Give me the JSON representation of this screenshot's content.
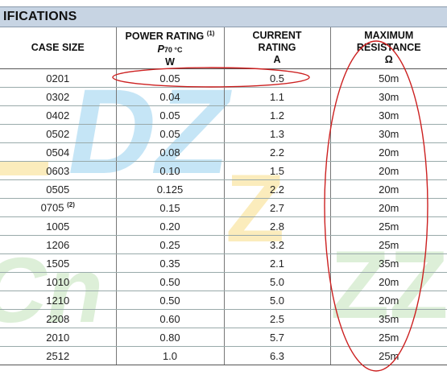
{
  "title": "IFICATIONS",
  "headers": {
    "case_size": "CASE SIZE",
    "power": {
      "line1": "POWER RATING",
      "note": "(1)",
      "sym": "P",
      "sub": "70 °C",
      "unit": "W"
    },
    "current": {
      "line1": "CURRENT",
      "line2": "RATING",
      "unit": "A"
    },
    "resistance": {
      "line1": "MAXIMUM",
      "line2": "RESISTANCE",
      "unit": "Ω"
    }
  },
  "rows": [
    {
      "case": "0201",
      "note": "",
      "power": "0.05",
      "current": "0.5",
      "resistance": "50m"
    },
    {
      "case": "0302",
      "note": "",
      "power": "0.04",
      "current": "1.1",
      "resistance": "30m"
    },
    {
      "case": "0402",
      "note": "",
      "power": "0.05",
      "current": "1.2",
      "resistance": "30m"
    },
    {
      "case": "0502",
      "note": "",
      "power": "0.05",
      "current": "1.3",
      "resistance": "30m"
    },
    {
      "case": "0504",
      "note": "",
      "power": "0.08",
      "current": "2.2",
      "resistance": "20m"
    },
    {
      "case": "0603",
      "note": "",
      "power": "0.10",
      "current": "1.5",
      "resistance": "20m"
    },
    {
      "case": "0505",
      "note": "",
      "power": "0.125",
      "current": "2.2",
      "resistance": "20m"
    },
    {
      "case": "0705",
      "note": "(2)",
      "power": "0.15",
      "current": "2.7",
      "resistance": "20m"
    },
    {
      "case": "1005",
      "note": "",
      "power": "0.20",
      "current": "2.8",
      "resistance": "25m"
    },
    {
      "case": "1206",
      "note": "",
      "power": "0.25",
      "current": "3.2",
      "resistance": "25m"
    },
    {
      "case": "1505",
      "note": "",
      "power": "0.35",
      "current": "2.1",
      "resistance": "35m"
    },
    {
      "case": "1010",
      "note": "",
      "power": "0.50",
      "current": "5.0",
      "resistance": "20m"
    },
    {
      "case": "1210",
      "note": "",
      "power": "0.50",
      "current": "5.0",
      "resistance": "20m"
    },
    {
      "case": "2208",
      "note": "",
      "power": "0.60",
      "current": "2.5",
      "resistance": "35m"
    },
    {
      "case": "2010",
      "note": "",
      "power": "0.80",
      "current": "5.7",
      "resistance": "25m"
    },
    {
      "case": "2512",
      "note": "",
      "power": "1.0",
      "current": "6.3",
      "resistance": "25m"
    }
  ],
  "colors": {
    "title_band": "#c7d4e3",
    "annotation": "#cc2020",
    "watermark_blue": "#5ab4e6",
    "watermark_yellow": "#f3c840",
    "watermark_green": "#9ed28e"
  },
  "watermark_text": [
    "DZ",
    "Z",
    "ZZ",
    "Cn"
  ]
}
